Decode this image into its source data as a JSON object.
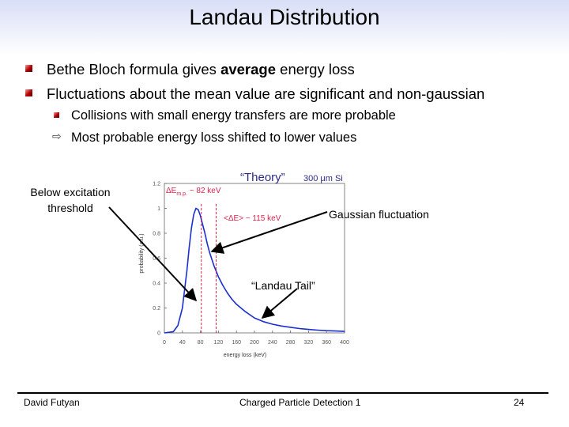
{
  "slide": {
    "title": "Landau Distribution",
    "bullets": [
      {
        "parts": [
          "Bethe Bloch formula gives ",
          "average",
          " energy loss"
        ]
      },
      {
        "text": "Fluctuations about the mean value are significant and non-gaussian"
      }
    ],
    "sub_bullets": [
      {
        "text": "Collisions with small energy transfers are more probable"
      },
      {
        "text": "Most probable energy loss shifted to lower values"
      }
    ],
    "sub_bullet_icons": [
      "square-bullet-icon",
      "arrow-right-icon"
    ],
    "annotations": {
      "below_excitation": [
        "Below excitation",
        "threshold"
      ],
      "gaussian": "Gaussian fluctuation",
      "landau_tail": "“Landau Tail”"
    },
    "footer": {
      "author": "David Futyan",
      "course": "Charged Particle Detection 1",
      "page": "24"
    }
  },
  "chart_data": {
    "type": "line",
    "title": "“Theory”",
    "subtitle": "300 μm Si",
    "xlabel": "energy loss (keV)",
    "ylabel": "probability (a.u.)",
    "xlim": [
      0,
      400
    ],
    "ylim": [
      0,
      1.2
    ],
    "xticks": [
      "0",
      "40",
      "80",
      "120",
      "160",
      "200",
      "240",
      "280",
      "320",
      "360",
      "400"
    ],
    "yticks": [
      "0",
      "0.2",
      "0.4",
      "0.6",
      "0.8",
      "1",
      "1.2"
    ],
    "series": [
      {
        "x": [
          0,
          20,
          30,
          40,
          50,
          55,
          60,
          65,
          70,
          75,
          80,
          85,
          90,
          95,
          100,
          110,
          120,
          130,
          140,
          150,
          160,
          180,
          200,
          220,
          240,
          260,
          280,
          300,
          320,
          340,
          360,
          380,
          400
        ],
        "y": [
          0,
          0.01,
          0.06,
          0.2,
          0.5,
          0.68,
          0.84,
          0.95,
          1.0,
          0.99,
          0.94,
          0.87,
          0.8,
          0.72,
          0.65,
          0.54,
          0.45,
          0.38,
          0.32,
          0.27,
          0.23,
          0.17,
          0.12,
          0.09,
          0.07,
          0.055,
          0.045,
          0.035,
          0.028,
          0.022,
          0.018,
          0.015,
          0.012
        ],
        "color": "#1a2fd0"
      }
    ],
    "markers": [
      {
        "label": "ΔE",
        "label_sub": "m.p.",
        "label_suffix": " ~ 82 keV",
        "x": 82,
        "color": "#e0204a"
      },
      {
        "label": "<ΔE> ~ 115 keV",
        "x": 115,
        "color": "#e0204a"
      }
    ]
  }
}
